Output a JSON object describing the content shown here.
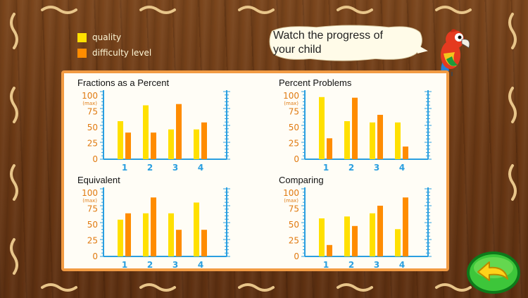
{
  "legend": {
    "items": [
      {
        "label": "quality",
        "color": "#ffe000"
      },
      {
        "label": "difficulty level",
        "color": "#ff8c00"
      }
    ]
  },
  "speech_bubble": {
    "line1": "Watch the progress of",
    "line2": "your child"
  },
  "icons": {
    "mascot": "parrot-icon",
    "back": "back-arrow-icon"
  },
  "chart_data": [
    {
      "type": "bar",
      "title": "Fractions as a Percent",
      "categories": [
        "1",
        "2",
        "3",
        "4"
      ],
      "y_ticks": [
        "100",
        "75",
        "50",
        "25",
        "0"
      ],
      "y_max_label": "(max)",
      "ylim": [
        0,
        100
      ],
      "series": [
        {
          "name": "quality",
          "values": [
            60,
            85,
            47,
            47
          ]
        },
        {
          "name": "difficulty level",
          "values": [
            42,
            42,
            87,
            58
          ]
        }
      ]
    },
    {
      "type": "bar",
      "title": "Percent Problems",
      "categories": [
        "1",
        "2",
        "3",
        "4"
      ],
      "y_ticks": [
        "100",
        "75",
        "50",
        "25",
        "0"
      ],
      "y_max_label": "(max)",
      "ylim": [
        0,
        100
      ],
      "series": [
        {
          "name": "quality",
          "values": [
            98,
            60,
            58,
            58
          ]
        },
        {
          "name": "difficulty level",
          "values": [
            33,
            97,
            70,
            20
          ]
        }
      ]
    },
    {
      "type": "bar",
      "title": "Equivalent",
      "categories": [
        "1",
        "2",
        "3",
        "4"
      ],
      "y_ticks": [
        "100",
        "75",
        "50",
        "25",
        "0"
      ],
      "y_max_label": "(max)",
      "ylim": [
        0,
        100
      ],
      "series": [
        {
          "name": "quality",
          "values": [
            58,
            68,
            68,
            85
          ]
        },
        {
          "name": "difficulty level",
          "values": [
            68,
            93,
            42,
            42
          ]
        }
      ]
    },
    {
      "type": "bar",
      "title": "Comparing",
      "categories": [
        "1",
        "2",
        "3",
        "4"
      ],
      "y_ticks": [
        "100",
        "75",
        "50",
        "25",
        "0"
      ],
      "y_max_label": "(max)",
      "ylim": [
        0,
        100
      ],
      "series": [
        {
          "name": "quality",
          "values": [
            60,
            63,
            68,
            43
          ]
        },
        {
          "name": "difficulty level",
          "values": [
            18,
            48,
            80,
            93
          ]
        }
      ]
    }
  ]
}
